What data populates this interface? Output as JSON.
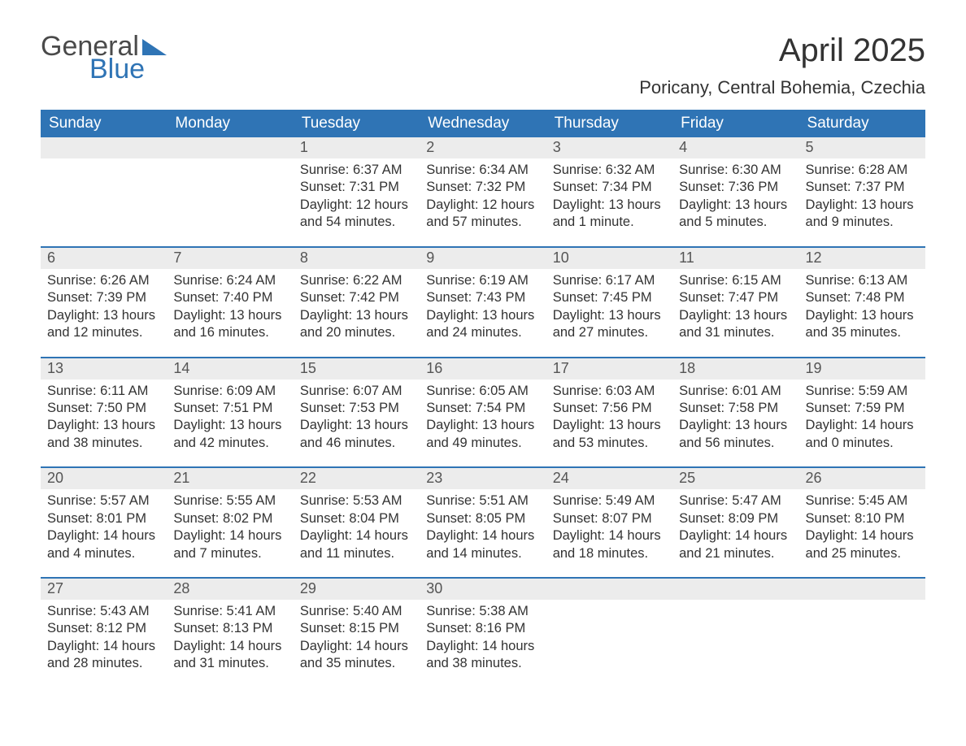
{
  "brand": {
    "word1": "General",
    "word2": "Blue",
    "logo_color": "#2f74b5",
    "text_color": "#4a4a4a"
  },
  "title": "April 2025",
  "subtitle": "Poricany, Central Bohemia, Czechia",
  "colors": {
    "header_bg": "#2f74b5",
    "header_fg": "#ffffff",
    "date_bar_bg": "#ececec",
    "week_divider": "#2f74b5",
    "body_text": "#333333",
    "background": "#ffffff"
  },
  "day_headers": [
    "Sunday",
    "Monday",
    "Tuesday",
    "Wednesday",
    "Thursday",
    "Friday",
    "Saturday"
  ],
  "weeks": [
    [
      {
        "date": "",
        "sunrise": "",
        "sunset": "",
        "daylight": ""
      },
      {
        "date": "",
        "sunrise": "",
        "sunset": "",
        "daylight": ""
      },
      {
        "date": "1",
        "sunrise": "Sunrise: 6:37 AM",
        "sunset": "Sunset: 7:31 PM",
        "daylight": "Daylight: 12 hours and 54 minutes."
      },
      {
        "date": "2",
        "sunrise": "Sunrise: 6:34 AM",
        "sunset": "Sunset: 7:32 PM",
        "daylight": "Daylight: 12 hours and 57 minutes."
      },
      {
        "date": "3",
        "sunrise": "Sunrise: 6:32 AM",
        "sunset": "Sunset: 7:34 PM",
        "daylight": "Daylight: 13 hours and 1 minute."
      },
      {
        "date": "4",
        "sunrise": "Sunrise: 6:30 AM",
        "sunset": "Sunset: 7:36 PM",
        "daylight": "Daylight: 13 hours and 5 minutes."
      },
      {
        "date": "5",
        "sunrise": "Sunrise: 6:28 AM",
        "sunset": "Sunset: 7:37 PM",
        "daylight": "Daylight: 13 hours and 9 minutes."
      }
    ],
    [
      {
        "date": "6",
        "sunrise": "Sunrise: 6:26 AM",
        "sunset": "Sunset: 7:39 PM",
        "daylight": "Daylight: 13 hours and 12 minutes."
      },
      {
        "date": "7",
        "sunrise": "Sunrise: 6:24 AM",
        "sunset": "Sunset: 7:40 PM",
        "daylight": "Daylight: 13 hours and 16 minutes."
      },
      {
        "date": "8",
        "sunrise": "Sunrise: 6:22 AM",
        "sunset": "Sunset: 7:42 PM",
        "daylight": "Daylight: 13 hours and 20 minutes."
      },
      {
        "date": "9",
        "sunrise": "Sunrise: 6:19 AM",
        "sunset": "Sunset: 7:43 PM",
        "daylight": "Daylight: 13 hours and 24 minutes."
      },
      {
        "date": "10",
        "sunrise": "Sunrise: 6:17 AM",
        "sunset": "Sunset: 7:45 PM",
        "daylight": "Daylight: 13 hours and 27 minutes."
      },
      {
        "date": "11",
        "sunrise": "Sunrise: 6:15 AM",
        "sunset": "Sunset: 7:47 PM",
        "daylight": "Daylight: 13 hours and 31 minutes."
      },
      {
        "date": "12",
        "sunrise": "Sunrise: 6:13 AM",
        "sunset": "Sunset: 7:48 PM",
        "daylight": "Daylight: 13 hours and 35 minutes."
      }
    ],
    [
      {
        "date": "13",
        "sunrise": "Sunrise: 6:11 AM",
        "sunset": "Sunset: 7:50 PM",
        "daylight": "Daylight: 13 hours and 38 minutes."
      },
      {
        "date": "14",
        "sunrise": "Sunrise: 6:09 AM",
        "sunset": "Sunset: 7:51 PM",
        "daylight": "Daylight: 13 hours and 42 minutes."
      },
      {
        "date": "15",
        "sunrise": "Sunrise: 6:07 AM",
        "sunset": "Sunset: 7:53 PM",
        "daylight": "Daylight: 13 hours and 46 minutes."
      },
      {
        "date": "16",
        "sunrise": "Sunrise: 6:05 AM",
        "sunset": "Sunset: 7:54 PM",
        "daylight": "Daylight: 13 hours and 49 minutes."
      },
      {
        "date": "17",
        "sunrise": "Sunrise: 6:03 AM",
        "sunset": "Sunset: 7:56 PM",
        "daylight": "Daylight: 13 hours and 53 minutes."
      },
      {
        "date": "18",
        "sunrise": "Sunrise: 6:01 AM",
        "sunset": "Sunset: 7:58 PM",
        "daylight": "Daylight: 13 hours and 56 minutes."
      },
      {
        "date": "19",
        "sunrise": "Sunrise: 5:59 AM",
        "sunset": "Sunset: 7:59 PM",
        "daylight": "Daylight: 14 hours and 0 minutes."
      }
    ],
    [
      {
        "date": "20",
        "sunrise": "Sunrise: 5:57 AM",
        "sunset": "Sunset: 8:01 PM",
        "daylight": "Daylight: 14 hours and 4 minutes."
      },
      {
        "date": "21",
        "sunrise": "Sunrise: 5:55 AM",
        "sunset": "Sunset: 8:02 PM",
        "daylight": "Daylight: 14 hours and 7 minutes."
      },
      {
        "date": "22",
        "sunrise": "Sunrise: 5:53 AM",
        "sunset": "Sunset: 8:04 PM",
        "daylight": "Daylight: 14 hours and 11 minutes."
      },
      {
        "date": "23",
        "sunrise": "Sunrise: 5:51 AM",
        "sunset": "Sunset: 8:05 PM",
        "daylight": "Daylight: 14 hours and 14 minutes."
      },
      {
        "date": "24",
        "sunrise": "Sunrise: 5:49 AM",
        "sunset": "Sunset: 8:07 PM",
        "daylight": "Daylight: 14 hours and 18 minutes."
      },
      {
        "date": "25",
        "sunrise": "Sunrise: 5:47 AM",
        "sunset": "Sunset: 8:09 PM",
        "daylight": "Daylight: 14 hours and 21 minutes."
      },
      {
        "date": "26",
        "sunrise": "Sunrise: 5:45 AM",
        "sunset": "Sunset: 8:10 PM",
        "daylight": "Daylight: 14 hours and 25 minutes."
      }
    ],
    [
      {
        "date": "27",
        "sunrise": "Sunrise: 5:43 AM",
        "sunset": "Sunset: 8:12 PM",
        "daylight": "Daylight: 14 hours and 28 minutes."
      },
      {
        "date": "28",
        "sunrise": "Sunrise: 5:41 AM",
        "sunset": "Sunset: 8:13 PM",
        "daylight": "Daylight: 14 hours and 31 minutes."
      },
      {
        "date": "29",
        "sunrise": "Sunrise: 5:40 AM",
        "sunset": "Sunset: 8:15 PM",
        "daylight": "Daylight: 14 hours and 35 minutes."
      },
      {
        "date": "30",
        "sunrise": "Sunrise: 5:38 AM",
        "sunset": "Sunset: 8:16 PM",
        "daylight": "Daylight: 14 hours and 38 minutes."
      },
      {
        "date": "",
        "sunrise": "",
        "sunset": "",
        "daylight": ""
      },
      {
        "date": "",
        "sunrise": "",
        "sunset": "",
        "daylight": ""
      },
      {
        "date": "",
        "sunrise": "",
        "sunset": "",
        "daylight": ""
      }
    ]
  ]
}
